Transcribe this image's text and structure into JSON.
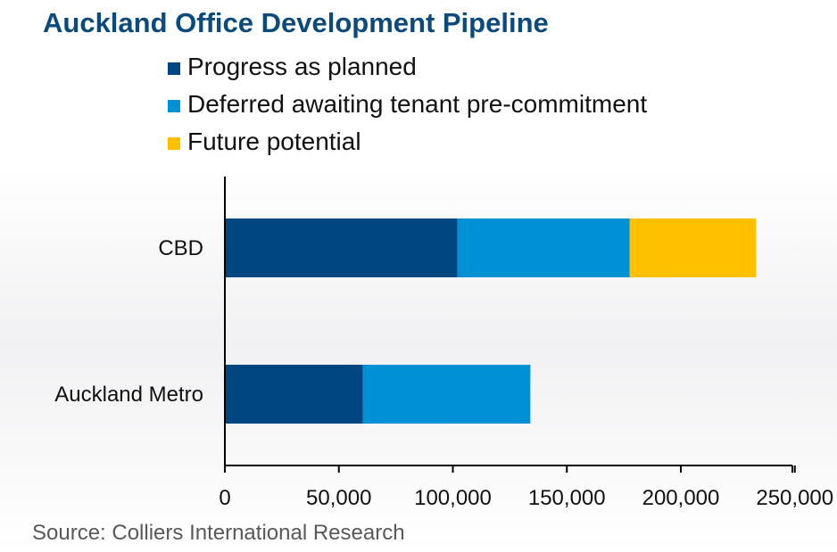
{
  "chart_data": {
    "type": "bar",
    "orientation": "horizontal",
    "stacked": true,
    "title": "Auckland Office Development Pipeline",
    "categories": [
      "CBD",
      "Auckland Metro"
    ],
    "series": [
      {
        "name": "Progress as planned",
        "color": "#004680",
        "values": [
          102000,
          60500
        ]
      },
      {
        "name": "Deferred awaiting tenant pre-commitment",
        "color": "#0090d4",
        "values": [
          75500,
          73500
        ]
      },
      {
        "name": "Future potential",
        "color": "#ffc000",
        "values": [
          55500,
          0
        ]
      }
    ],
    "xlim": [
      0,
      250000
    ],
    "xticks": [
      0,
      50000,
      100000,
      150000,
      200000,
      250000
    ],
    "xtick_labels": [
      "0",
      "50,000",
      "100,000",
      "150,000",
      "200,000",
      "250,000"
    ],
    "legend_position": "top",
    "grid": false
  },
  "source": "Source: Colliers International Research"
}
